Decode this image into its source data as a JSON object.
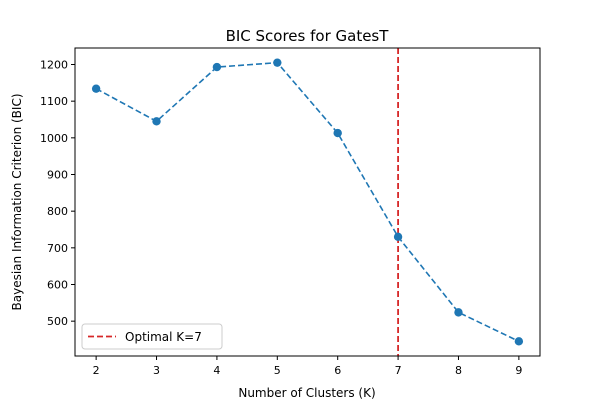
{
  "chart_data": {
    "type": "line",
    "title": "BIC Scores for GatesT",
    "xlabel": "Number of Clusters (K)",
    "ylabel": "Bayesian Information Criterion (BIC)",
    "x": [
      2,
      3,
      4,
      5,
      6,
      7,
      8,
      9
    ],
    "xticks": [
      "2",
      "3",
      "4",
      "5",
      "6",
      "7",
      "8",
      "9"
    ],
    "xlim": [
      1.65,
      9.35
    ],
    "yticks": [
      "500",
      "600",
      "700",
      "800",
      "900",
      "1000",
      "1100",
      "1200"
    ],
    "ylim": [
      405,
      1245
    ],
    "grid": false,
    "legend_position": "lower-left",
    "series": [
      {
        "values": [
          1134,
          1045,
          1193,
          1205,
          1013,
          730,
          524,
          445
        ],
        "color": "#1f77b4",
        "line_style": "dashed",
        "marker": "circle"
      }
    ],
    "reference_lines": [
      {
        "orientation": "vertical",
        "x": 7,
        "label": "Optimal K=7",
        "color": "#d62728",
        "line_style": "dashed"
      }
    ]
  }
}
